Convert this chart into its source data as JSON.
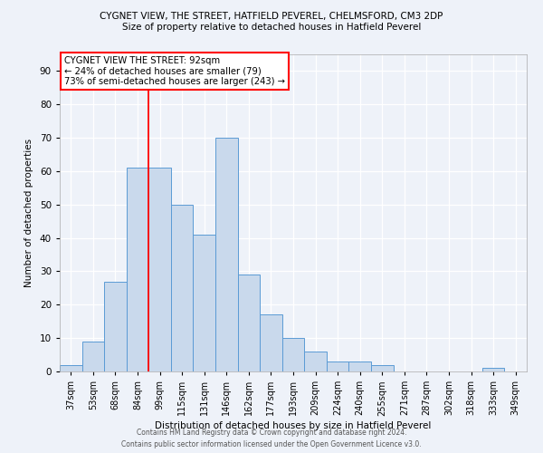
{
  "title_line1": "CYGNET VIEW, THE STREET, HATFIELD PEVEREL, CHELMSFORD, CM3 2DP",
  "title_line2": "Size of property relative to detached houses in Hatfield Peverel",
  "xlabel": "Distribution of detached houses by size in Hatfield Peverel",
  "ylabel": "Number of detached properties",
  "annotation_line1": "CYGNET VIEW THE STREET: 92sqm",
  "annotation_line2": "← 24% of detached houses are smaller (79)",
  "annotation_line3": "73% of semi-detached houses are larger (243) →",
  "bar_labels": [
    "37sqm",
    "53sqm",
    "68sqm",
    "84sqm",
    "99sqm",
    "115sqm",
    "131sqm",
    "146sqm",
    "162sqm",
    "177sqm",
    "193sqm",
    "209sqm",
    "224sqm",
    "240sqm",
    "255sqm",
    "271sqm",
    "287sqm",
    "302sqm",
    "318sqm",
    "333sqm",
    "349sqm"
  ],
  "bar_values": [
    2,
    9,
    27,
    61,
    61,
    50,
    41,
    70,
    29,
    17,
    10,
    6,
    3,
    3,
    2,
    0,
    0,
    0,
    0,
    1,
    0
  ],
  "bar_color": "#c9d9ec",
  "bar_edge_color": "#5b9bd5",
  "red_line_x": 3.5,
  "ylim": [
    0,
    95
  ],
  "yticks": [
    0,
    10,
    20,
    30,
    40,
    50,
    60,
    70,
    80,
    90
  ],
  "annotation_box_color": "white",
  "annotation_box_edge": "red",
  "footer_line1": "Contains HM Land Registry data © Crown copyright and database right 2024.",
  "footer_line2": "Contains public sector information licensed under the Open Government Licence v3.0.",
  "background_color": "#eef2f9"
}
